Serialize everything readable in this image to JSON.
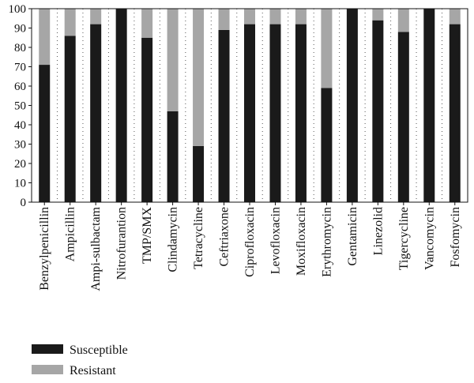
{
  "chart_data": {
    "type": "bar",
    "stacked": true,
    "categories": [
      "Benzylpenicillin",
      "Ampicillin",
      "Ampi-sulbactam",
      "Nitrofurantion",
      "TMP/SMX",
      "Clindamycin",
      "Tetracycline",
      "Ceftriaxone",
      "Ciprofloxacin",
      "Levofloxacin",
      "Moxifloxacin",
      "Erythromycin",
      "Gentamicin",
      "Linezolid",
      "Tigercycline",
      "Vancomycin",
      "Fosfomycin"
    ],
    "series": [
      {
        "name": "Susceptible",
        "color": "#1a1a1a",
        "values": [
          71,
          86,
          92,
          100,
          85,
          47,
          29,
          89,
          92,
          92,
          92,
          59,
          100,
          94,
          88,
          100,
          92
        ]
      },
      {
        "name": "Resistant",
        "color": "#a6a6a6",
        "values": [
          29,
          14,
          8,
          0,
          15,
          53,
          71,
          11,
          8,
          8,
          8,
          41,
          0,
          6,
          12,
          0,
          8
        ]
      }
    ],
    "ylim": [
      0,
      100
    ],
    "yticks": [
      "0",
      "10",
      "20",
      "30",
      "40",
      "50",
      "60",
      "70",
      "80",
      "90",
      "100"
    ],
    "grid": "dotted vertical between categories",
    "legend_position": "bottom-left"
  }
}
